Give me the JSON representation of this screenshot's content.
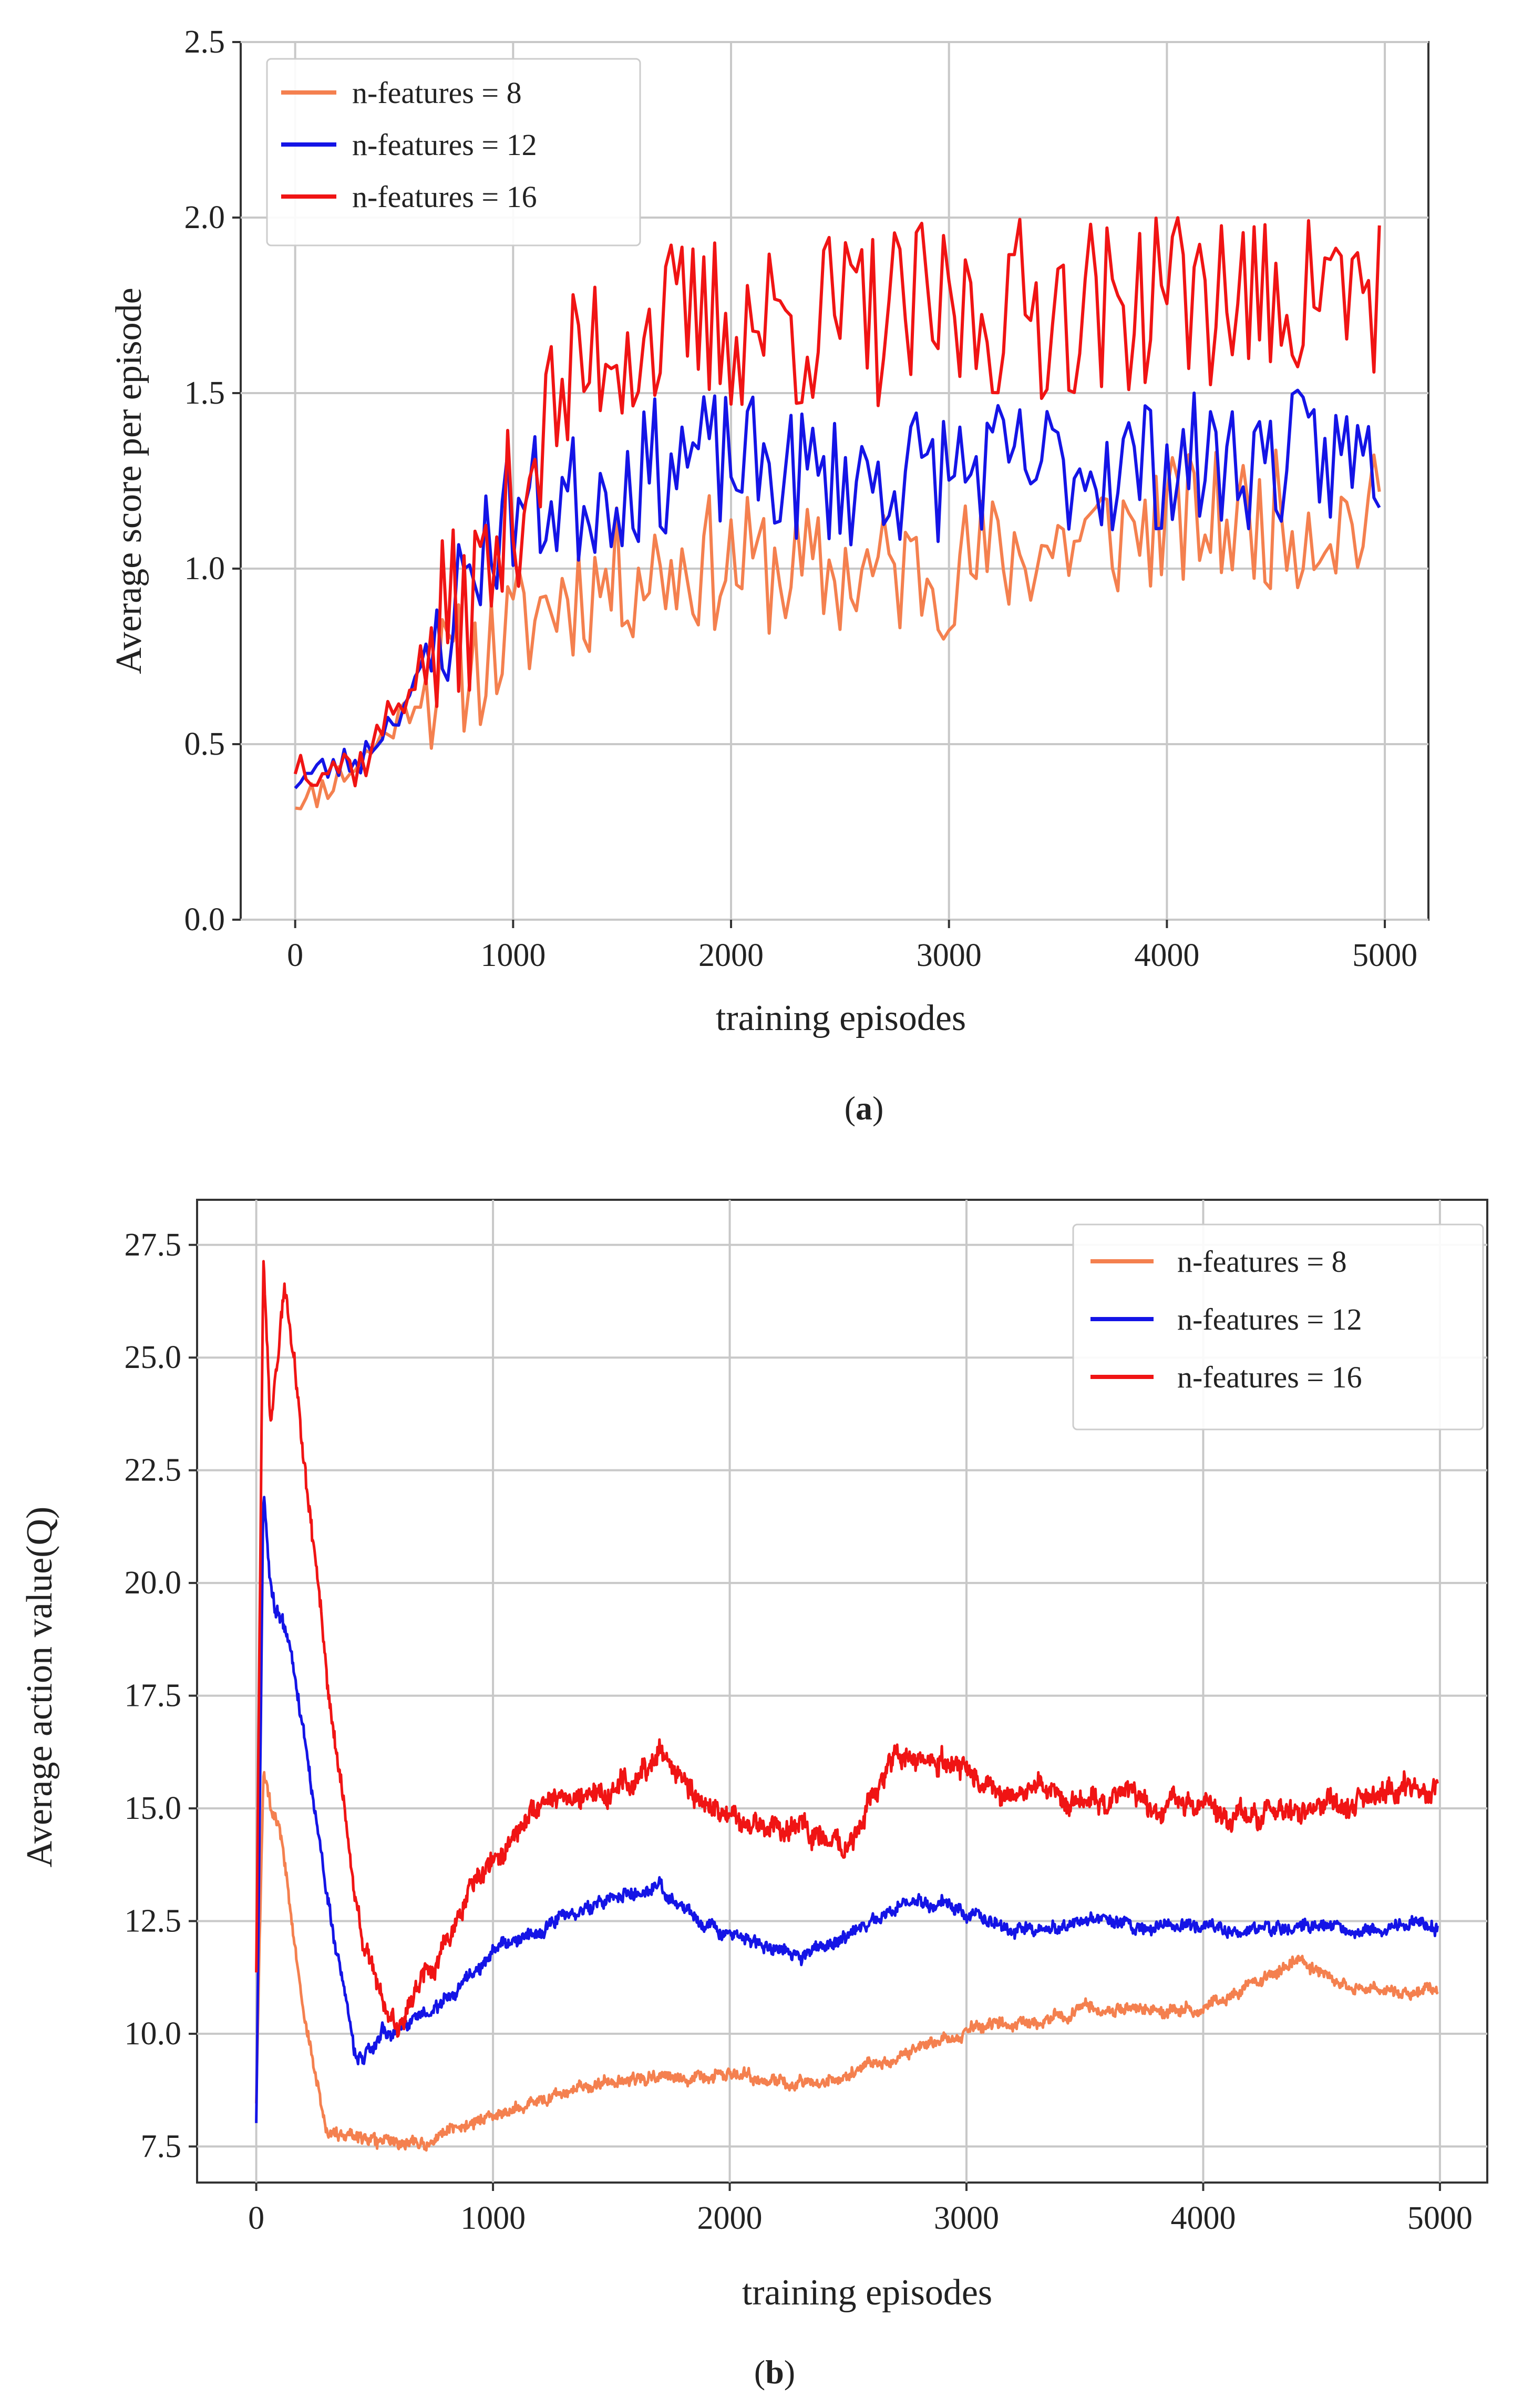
{
  "captions": {
    "a_open": "(",
    "a_letter": "a",
    "a_close": ")",
    "b_open": "(",
    "b_letter": "b",
    "b_close": ")"
  },
  "colors": {
    "n8": "#f4804f",
    "n12": "#1414e6",
    "n16": "#f01414"
  },
  "chart_data": [
    {
      "type": "line",
      "xlabel": "training episodes",
      "ylabel": "Average score per episode",
      "xlim": [
        -250,
        5200
      ],
      "ylim": [
        0.0,
        2.5
      ],
      "xticks": [
        0,
        1000,
        2000,
        3000,
        4000,
        5000
      ],
      "xtick_labels": [
        "0",
        "1000",
        "2000",
        "3000",
        "4000",
        "5000"
      ],
      "yticks": [
        0.0,
        0.5,
        1.0,
        1.5,
        2.0,
        2.5
      ],
      "ytick_labels": [
        "0.0",
        "0.5",
        "1.0",
        "1.5",
        "2.0",
        "2.5"
      ],
      "grid": true,
      "legend_position": "top-left",
      "n_points": 200,
      "x_max": 4975,
      "series": [
        {
          "name": "n-features = 8",
          "color_key": "n8",
          "waypoints": [
            [
              0,
              0.32
            ],
            [
              300,
              0.45
            ],
            [
              600,
              0.66
            ],
            [
              900,
              0.76
            ],
            [
              1200,
              0.92
            ],
            [
              1600,
              1.0
            ],
            [
              2000,
              1.02
            ],
            [
              2400,
              0.98
            ],
            [
              3000,
              1.0
            ],
            [
              3500,
              1.07
            ],
            [
              4000,
              1.13
            ],
            [
              4500,
              1.14
            ],
            [
              5000,
              1.13
            ]
          ],
          "noise": [
            0.05,
            0.2
          ],
          "ymin": 0.3,
          "ymax": 1.6
        },
        {
          "name": "n-features = 12",
          "color_key": "n12",
          "waypoints": [
            [
              0,
              0.4
            ],
            [
              300,
              0.46
            ],
            [
              600,
              0.7
            ],
            [
              800,
              1.0
            ],
            [
              1000,
              1.18
            ],
            [
              1300,
              1.2
            ],
            [
              1800,
              1.32
            ],
            [
              2500,
              1.25
            ],
            [
              3000,
              1.28
            ],
            [
              4000,
              1.3
            ],
            [
              5000,
              1.32
            ]
          ],
          "noise": [
            0.05,
            0.2
          ],
          "ymin": 0.3,
          "ymax": 1.62
        },
        {
          "name": "n-features = 16",
          "color_key": "n16",
          "waypoints": [
            [
              0,
              0.45
            ],
            [
              300,
              0.44
            ],
            [
              600,
              0.75
            ],
            [
              900,
              1.0
            ],
            [
              1100,
              1.35
            ],
            [
              1400,
              1.65
            ],
            [
              2000,
              1.7
            ],
            [
              3000,
              1.72
            ],
            [
              4000,
              1.78
            ],
            [
              5000,
              1.8
            ]
          ],
          "noise": [
            0.07,
            0.27
          ],
          "ymin": 0.28,
          "ymax": 2.0
        }
      ]
    },
    {
      "type": "line",
      "xlabel": "training episodes",
      "ylabel": "Average action value(Q)",
      "xlim": [
        -250,
        5200
      ],
      "ylim": [
        6.7,
        28.5
      ],
      "xticks": [
        0,
        1000,
        2000,
        3000,
        4000,
        5000
      ],
      "xtick_labels": [
        "0",
        "1000",
        "2000",
        "3000",
        "4000",
        "5000"
      ],
      "yticks": [
        7.5,
        10.0,
        12.5,
        15.0,
        17.5,
        20.0,
        22.5,
        25.0,
        27.5
      ],
      "ytick_labels": [
        "7.5",
        "10.0",
        "12.5",
        "15.0",
        "17.5",
        "20.0",
        "22.5",
        "25.0",
        "27.5"
      ],
      "grid": true,
      "legend_position": "top-right",
      "n_points": 1800,
      "x_max": 4990,
      "series": [
        {
          "name": "n-features = 8",
          "color_key": "n8",
          "waypoints": [
            [
              0,
              8.5
            ],
            [
              30,
              15.8
            ],
            [
              100,
              14.5
            ],
            [
              200,
              10.5
            ],
            [
              300,
              7.8
            ],
            [
              500,
              7.7
            ],
            [
              700,
              7.6
            ],
            [
              1000,
              8.2
            ],
            [
              1500,
              9.0
            ],
            [
              2000,
              9.1
            ],
            [
              2400,
              8.9
            ],
            [
              2800,
              9.7
            ],
            [
              3000,
              10.1
            ],
            [
              3500,
              10.5
            ],
            [
              4000,
              10.6
            ],
            [
              4400,
              11.6
            ],
            [
              4600,
              11.0
            ],
            [
              5000,
              10.9
            ]
          ],
          "noise": [
            0.22,
            0.18
          ],
          "ymin": 7.2,
          "ymax": 16.2
        },
        {
          "name": "n-features = 12",
          "color_key": "n12",
          "waypoints": [
            [
              0,
              8.0
            ],
            [
              30,
              21.8
            ],
            [
              60,
              19.8
            ],
            [
              150,
              18.5
            ],
            [
              300,
              13.0
            ],
            [
              420,
              9.5
            ],
            [
              600,
              10.2
            ],
            [
              800,
              10.8
            ],
            [
              1000,
              11.8
            ],
            [
              1300,
              12.6
            ],
            [
              1700,
              13.3
            ],
            [
              1900,
              12.4
            ],
            [
              2300,
              11.7
            ],
            [
              2800,
              12.9
            ],
            [
              3200,
              12.3
            ],
            [
              3600,
              12.5
            ],
            [
              4000,
              12.3
            ],
            [
              4500,
              12.4
            ],
            [
              5000,
              12.3
            ]
          ],
          "noise": [
            0.25,
            0.2
          ],
          "ymin": 7.8,
          "ymax": 22.0
        },
        {
          "name": "n-features = 16",
          "color_key": "n16",
          "waypoints": [
            [
              0,
              11.5
            ],
            [
              30,
              27.4
            ],
            [
              60,
              23.5
            ],
            [
              120,
              26.5
            ],
            [
              160,
              24.8
            ],
            [
              250,
              20.5
            ],
            [
              320,
              17.0
            ],
            [
              450,
              12.0
            ],
            [
              600,
              10.1
            ],
            [
              700,
              11.0
            ],
            [
              900,
              13.2
            ],
            [
              1200,
              15.2
            ],
            [
              1500,
              15.3
            ],
            [
              1700,
              16.2
            ],
            [
              1900,
              14.8
            ],
            [
              2300,
              14.6
            ],
            [
              2500,
              14.2
            ],
            [
              2700,
              16.3
            ],
            [
              2900,
              16.0
            ],
            [
              3200,
              15.4
            ],
            [
              3500,
              15.3
            ],
            [
              4000,
              15.0
            ],
            [
              4500,
              14.9
            ],
            [
              4800,
              15.5
            ],
            [
              5000,
              15.5
            ]
          ],
          "noise": [
            0.3,
            0.35
          ],
          "ymin": 9.7,
          "ymax": 27.6
        }
      ]
    }
  ]
}
